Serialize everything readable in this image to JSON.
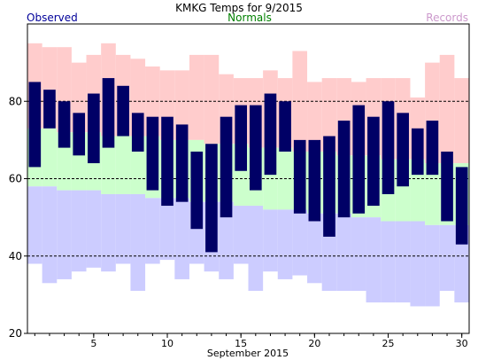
{
  "chart_data": {
    "type": "bar",
    "title": "KMKG Temps for 9/2015",
    "xlabel": "September 2015",
    "ylabel": "",
    "legend": {
      "observed": "Observed",
      "normals": "Normals",
      "records": "Records"
    },
    "colors": {
      "observed": "#000066",
      "normals": "#ccffcc",
      "records_high": "#ffcccc",
      "records_low": "#ccccff",
      "observed_label": "#000099",
      "normals_label": "#008000",
      "records_label": "#cc99cc"
    },
    "ylim": [
      20,
      100
    ],
    "yticks": [
      20,
      40,
      60,
      80
    ],
    "gridlines": [
      40,
      60,
      80
    ],
    "xlim": [
      0.5,
      30.5
    ],
    "xticks": [
      5,
      10,
      15,
      20,
      25,
      30
    ],
    "days": [
      1,
      2,
      3,
      4,
      5,
      6,
      7,
      8,
      9,
      10,
      11,
      12,
      13,
      14,
      15,
      16,
      17,
      18,
      19,
      20,
      21,
      22,
      23,
      24,
      25,
      26,
      27,
      28,
      29,
      30
    ],
    "observed_high": [
      85,
      83,
      80,
      77,
      82,
      86,
      84,
      77,
      76,
      76,
      74,
      67,
      69,
      76,
      79,
      79,
      82,
      80,
      70,
      70,
      71,
      75,
      79,
      76,
      80,
      77,
      73,
      75,
      67,
      63
    ],
    "observed_low": [
      63,
      73,
      68,
      66,
      64,
      68,
      71,
      67,
      57,
      53,
      54,
      47,
      41,
      50,
      62,
      57,
      61,
      67,
      51,
      49,
      45,
      50,
      51,
      53,
      56,
      58,
      61,
      61,
      49,
      43
    ],
    "normal_high": [
      73,
      73,
      72,
      72,
      72,
      71,
      71,
      71,
      71,
      70,
      70,
      70,
      69,
      69,
      69,
      68,
      68,
      68,
      67,
      67,
      67,
      66,
      66,
      66,
      65,
      65,
      65,
      64,
      64,
      64
    ],
    "normal_low": [
      58,
      58,
      57,
      57,
      57,
      56,
      56,
      56,
      55,
      55,
      55,
      54,
      54,
      54,
      53,
      53,
      52,
      52,
      52,
      51,
      51,
      51,
      50,
      50,
      49,
      49,
      49,
      48,
      48,
      48
    ],
    "record_high": [
      95,
      94,
      94,
      90,
      92,
      95,
      92,
      91,
      89,
      88,
      88,
      92,
      92,
      87,
      86,
      86,
      88,
      86,
      93,
      85,
      86,
      86,
      85,
      86,
      86,
      86,
      81,
      90,
      92,
      86
    ],
    "record_low": [
      38,
      33,
      34,
      36,
      37,
      36,
      38,
      31,
      38,
      39,
      34,
      38,
      36,
      34,
      38,
      31,
      36,
      34,
      35,
      33,
      31,
      31,
      31,
      28,
      28,
      28,
      27,
      27,
      31,
      28
    ]
  }
}
